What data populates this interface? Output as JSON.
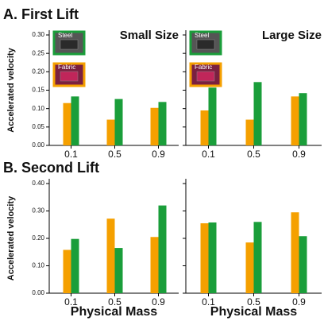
{
  "headings": [
    "A. First Lift",
    "B. Second Lift"
  ],
  "chart_data": [
    {
      "type": "bar",
      "title": "Small Size",
      "ylabel": "Accelerated velocity",
      "categories": [
        "0.1",
        "0.5",
        "0.9"
      ],
      "series": [
        {
          "name": "Fabric",
          "color": "#f5a000",
          "values": [
            0.115,
            0.07,
            0.102
          ]
        },
        {
          "name": "Steel",
          "color": "#1a9e3a",
          "values": [
            0.133,
            0.126,
            0.118
          ]
        }
      ],
      "ylim": [
        0,
        0.3
      ],
      "yticks": [
        {
          "value": 0,
          "label": "0.00"
        },
        0.05,
        {
          "value": 0.1,
          "label": "0.10"
        },
        0.15,
        {
          "value": 0.2,
          "label": "0.20"
        },
        0.25,
        {
          "value": 0.3,
          "label": "0.30"
        }
      ]
    },
    {
      "type": "bar",
      "title": "Large Size",
      "categories": [
        "0.1",
        "0.5",
        "0.9"
      ],
      "series": [
        {
          "name": "Fabric",
          "color": "#f5a000",
          "values": [
            0.095,
            0.07,
            0.133
          ]
        },
        {
          "name": "Steel",
          "color": "#1a9e3a",
          "values": [
            0.157,
            0.172,
            0.142
          ]
        }
      ],
      "ylim": [
        0,
        0.3
      ],
      "yticks": [
        0,
        0.05,
        0.1,
        0.15,
        0.2,
        0.25,
        0.3
      ],
      "ytick_labels": false
    },
    {
      "type": "bar",
      "ylabel": "Accelerated velocity",
      "xlabel": "Physical Mass",
      "categories": [
        "0.1",
        "0.5",
        "0.9"
      ],
      "series": [
        {
          "color": "#f5a000",
          "values": [
            0.158,
            0.272,
            0.205
          ]
        },
        {
          "color": "#1a9e3a",
          "values": [
            0.198,
            0.165,
            0.32
          ]
        }
      ],
      "ylim": [
        0,
        0.4
      ],
      "yticks": [
        {
          "value": 0,
          "label": "0.00"
        },
        {
          "value": 0.1,
          "label": "0.10"
        },
        {
          "value": 0.2,
          "label": "0.20"
        },
        {
          "value": 0.3,
          "label": "0.30"
        },
        {
          "value": 0.4,
          "label": "0.40"
        }
      ]
    },
    {
      "type": "bar",
      "xlabel": "Physical Mass",
      "categories": [
        "0.1",
        "0.5",
        "0.9"
      ],
      "series": [
        {
          "color": "#f5a000",
          "values": [
            0.255,
            0.185,
            0.295
          ]
        },
        {
          "color": "#1a9e3a",
          "values": [
            0.258,
            0.26,
            0.208
          ]
        }
      ],
      "ylim": [
        0,
        0.4
      ],
      "yticks": [
        0,
        0.1,
        0.2,
        0.3,
        0.4
      ],
      "ytick_labels": false
    }
  ]
}
